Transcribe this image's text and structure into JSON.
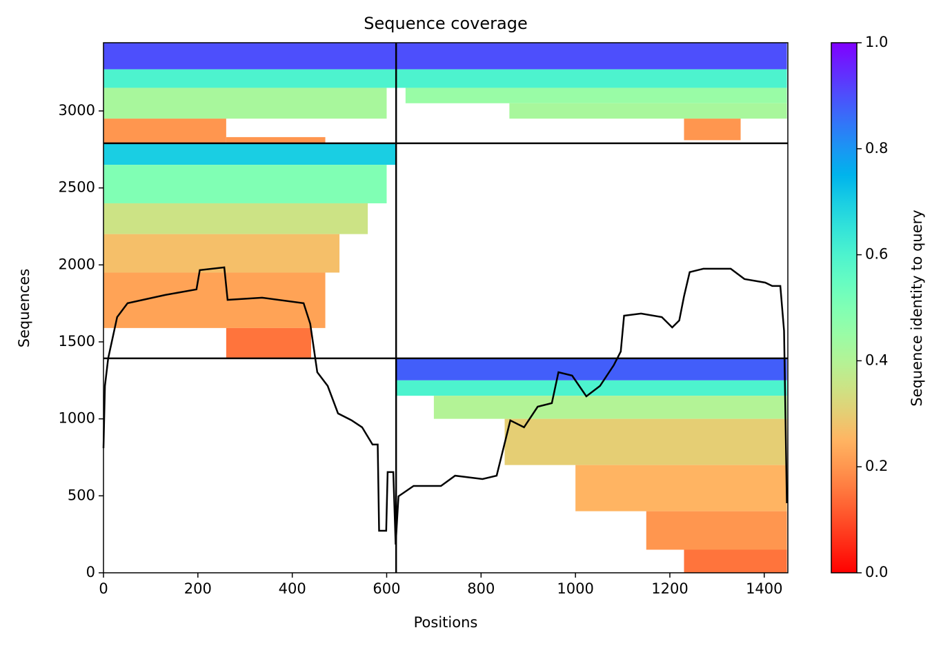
{
  "chart_data": {
    "type": "coverage",
    "title": "Sequence coverage",
    "xlabel": "Positions",
    "ylabel": "Sequences",
    "colorbar_label": "Sequence identity to query",
    "colormap": "rainbow_r",
    "xlim": [
      0,
      1450
    ],
    "ylim": [
      0,
      3443
    ],
    "xticks": [
      0,
      200,
      400,
      600,
      800,
      1000,
      1200,
      1400
    ],
    "yticks": [
      0,
      500,
      1000,
      1500,
      2000,
      2500,
      3000
    ],
    "clim": [
      0,
      1
    ],
    "cticks": [
      {
        "value": 0,
        "label": "0.0"
      },
      {
        "value": 0.2,
        "label": "0.2"
      },
      {
        "value": 0.4,
        "label": "0.4"
      },
      {
        "value": 0.6,
        "label": "0.6"
      },
      {
        "value": 0.8,
        "label": "0.8"
      },
      {
        "value": 1,
        "label": "1.0"
      }
    ],
    "chain_breaks_x": [
      620
    ],
    "chain_breaks_y": [
      1393,
      2790
    ],
    "blocks": [
      {
        "x": [
          0,
          620
        ],
        "y": [
          3270,
          3443
        ],
        "identity": 0.9
      },
      {
        "x": [
          0,
          620
        ],
        "y": [
          3150,
          3270
        ],
        "identity": 0.6
      },
      {
        "x": [
          0,
          600
        ],
        "y": [
          2950,
          3150
        ],
        "identity": 0.42
      },
      {
        "x": [
          0,
          260
        ],
        "y": [
          2790,
          2950
        ],
        "identity": 0.2
      },
      {
        "x": [
          260,
          470
        ],
        "y": [
          2790,
          2830
        ],
        "identity": 0.2
      },
      {
        "x": [
          620,
          1448
        ],
        "y": [
          3270,
          3443
        ],
        "identity": 0.9
      },
      {
        "x": [
          620,
          1448
        ],
        "y": [
          3150,
          3270
        ],
        "identity": 0.6
      },
      {
        "x": [
          640,
          1448
        ],
        "y": [
          3050,
          3150
        ],
        "identity": 0.45
      },
      {
        "x": [
          860,
          1448
        ],
        "y": [
          2950,
          3050
        ],
        "identity": 0.42
      },
      {
        "x": [
          1230,
          1350
        ],
        "y": [
          2810,
          2950
        ],
        "identity": 0.2
      },
      {
        "x": [
          0,
          620
        ],
        "y": [
          2650,
          2790
        ],
        "identity": 0.7
      },
      {
        "x": [
          0,
          600
        ],
        "y": [
          2400,
          2650
        ],
        "identity": 0.5
      },
      {
        "x": [
          0,
          560
        ],
        "y": [
          2200,
          2400
        ],
        "identity": 0.35
      },
      {
        "x": [
          0,
          500
        ],
        "y": [
          1950,
          2200
        ],
        "identity": 0.27
      },
      {
        "x": [
          0,
          470
        ],
        "y": [
          1590,
          1950
        ],
        "identity": 0.22
      },
      {
        "x": [
          260,
          440
        ],
        "y": [
          1393,
          1590
        ],
        "identity": 0.15
      },
      {
        "x": [
          620,
          1448
        ],
        "y": [
          1250,
          1393
        ],
        "identity": 0.88
      },
      {
        "x": [
          620,
          1448
        ],
        "y": [
          1150,
          1250
        ],
        "identity": 0.6
      },
      {
        "x": [
          700,
          1448
        ],
        "y": [
          1000,
          1150
        ],
        "identity": 0.4
      },
      {
        "x": [
          850,
          1448
        ],
        "y": [
          700,
          1000
        ],
        "identity": 0.3
      },
      {
        "x": [
          1000,
          1448
        ],
        "y": [
          400,
          700
        ],
        "identity": 0.25
      },
      {
        "x": [
          1150,
          1448
        ],
        "y": [
          150,
          400
        ],
        "identity": 0.2
      },
      {
        "x": [
          1230,
          1448
        ],
        "y": [
          0,
          150
        ],
        "identity": 0.15
      }
    ],
    "coverage": {
      "color": "#000000",
      "x": [
        0,
        3,
        10,
        29,
        51,
        131,
        197,
        204,
        256,
        263,
        336,
        424,
        438,
        453,
        475,
        497,
        526,
        548,
        570,
        581,
        584,
        599,
        602,
        614,
        619,
        625,
        657,
        715,
        745,
        803,
        833,
        862,
        891,
        920,
        950,
        964,
        993,
        1023,
        1052,
        1081,
        1096,
        1103,
        1139,
        1183,
        1205,
        1220,
        1230,
        1242,
        1271,
        1329,
        1358,
        1402,
        1417,
        1434,
        1442,
        1448
      ],
      "values": [
        810,
        1214,
        1393,
        1661,
        1751,
        1805,
        1841,
        1966,
        1984,
        1773,
        1787,
        1751,
        1617,
        1303,
        1214,
        1035,
        990,
        945,
        833,
        833,
        273,
        273,
        654,
        654,
        184,
        497,
        564,
        564,
        631,
        609,
        631,
        990,
        945,
        1079,
        1102,
        1303,
        1281,
        1146,
        1214,
        1348,
        1437,
        1670,
        1684,
        1661,
        1594,
        1639,
        1796,
        1953,
        1975,
        1975,
        1908,
        1885,
        1863,
        1863,
        1572,
        452
      ]
    }
  }
}
